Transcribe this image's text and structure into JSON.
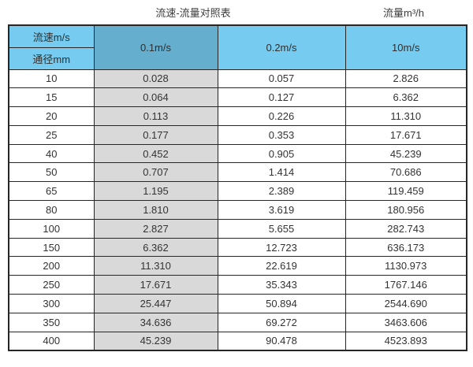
{
  "titles": {
    "main": "流速-流量对照表",
    "unit": "流量m³/h"
  },
  "table": {
    "corner_top_label": "流速m/s",
    "corner_bottom_label": "通径mm",
    "velocity_headers": [
      "0.1m/s",
      "0.2m/s",
      "10m/s"
    ],
    "rows": [
      [
        "10",
        "0.028",
        "0.057",
        "2.826"
      ],
      [
        "15",
        "0.064",
        "0.127",
        "6.362"
      ],
      [
        "20",
        "0.113",
        "0.226",
        "11.310"
      ],
      [
        "25",
        "0.177",
        "0.353",
        "17.671"
      ],
      [
        "40",
        "0.452",
        "0.905",
        "45.239"
      ],
      [
        "50",
        "0.707",
        "1.414",
        "70.686"
      ],
      [
        "65",
        "1.195",
        "2.389",
        "119.459"
      ],
      [
        "80",
        "1.810",
        "3.619",
        "180.956"
      ],
      [
        "100",
        "2.827",
        "5.655",
        "282.743"
      ],
      [
        "150",
        "6.362",
        "12.723",
        "636.173"
      ],
      [
        "200",
        "11.310",
        "22.619",
        "1130.973"
      ],
      [
        "250",
        "17.671",
        "35.343",
        "1767.146"
      ],
      [
        "300",
        "25.447",
        "50.894",
        "2544.690"
      ],
      [
        "350",
        "34.636",
        "69.272",
        "3463.606"
      ],
      [
        "400",
        "45.239",
        "90.478",
        "4523.893"
      ]
    ]
  },
  "colors": {
    "header_blue": "#76ccf0",
    "header_blue_dark": "#66aece",
    "shaded_column_gray": "#d9d9d9",
    "border_dark": "#262626",
    "text": "#333333",
    "background": "#ffffff"
  }
}
